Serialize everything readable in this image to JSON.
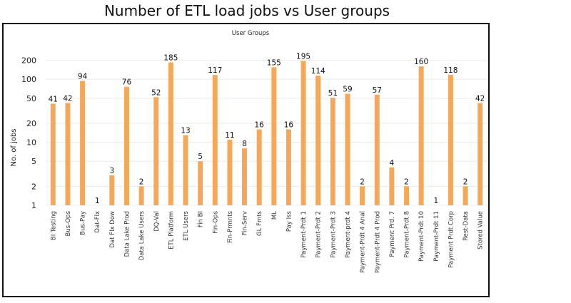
{
  "chart_data": {
    "type": "bar",
    "title": "Number of ETL load jobs vs User groups",
    "subtitle": "User Groups",
    "xlabel": "",
    "ylabel": "No. of jobs",
    "yscale": "log",
    "ylim": [
      1,
      250
    ],
    "yticks": [
      1,
      2,
      5,
      10,
      20,
      50,
      100,
      200
    ],
    "grid": true,
    "legend": "none",
    "categories": [
      "BI Testing",
      "Bus-Ops",
      "Bus-Pay",
      "Dat-Flx",
      "Dat Flx Dow",
      "Data Lake Prod",
      "Data Lake Users",
      "DQ-Val",
      "ETL Platform",
      "ETL Users",
      "Fin BI",
      "Fin-Ops",
      "Fin-Prmnts",
      "Fin-Serv",
      "GL Fmts",
      "ML",
      "Pay Iss",
      "Payment-Prdt 1",
      "Payment-Prdt 2",
      "Payment-Prdt 3",
      "Payment-prdt 4",
      "Payment-Prdt 4 Anal",
      "Payment-Prdt 4 Prod",
      "Payment Prd. 7",
      "Payment-Prdt 8",
      "Payment-Prdt 10",
      "Payment-Prdt 11",
      "Payment Prdt Corp",
      "Rest-Data",
      "Stored Value"
    ],
    "values": [
      41,
      42,
      94,
      1,
      3,
      76,
      2,
      52,
      185,
      13,
      5,
      117,
      11,
      8,
      16,
      155,
      16,
      195,
      114,
      51,
      59,
      2,
      57,
      4,
      2,
      160,
      1,
      118,
      2,
      42
    ],
    "colors": {
      "bar": "#F4A85C",
      "grid": "#ececec",
      "text": "#222222"
    }
  }
}
